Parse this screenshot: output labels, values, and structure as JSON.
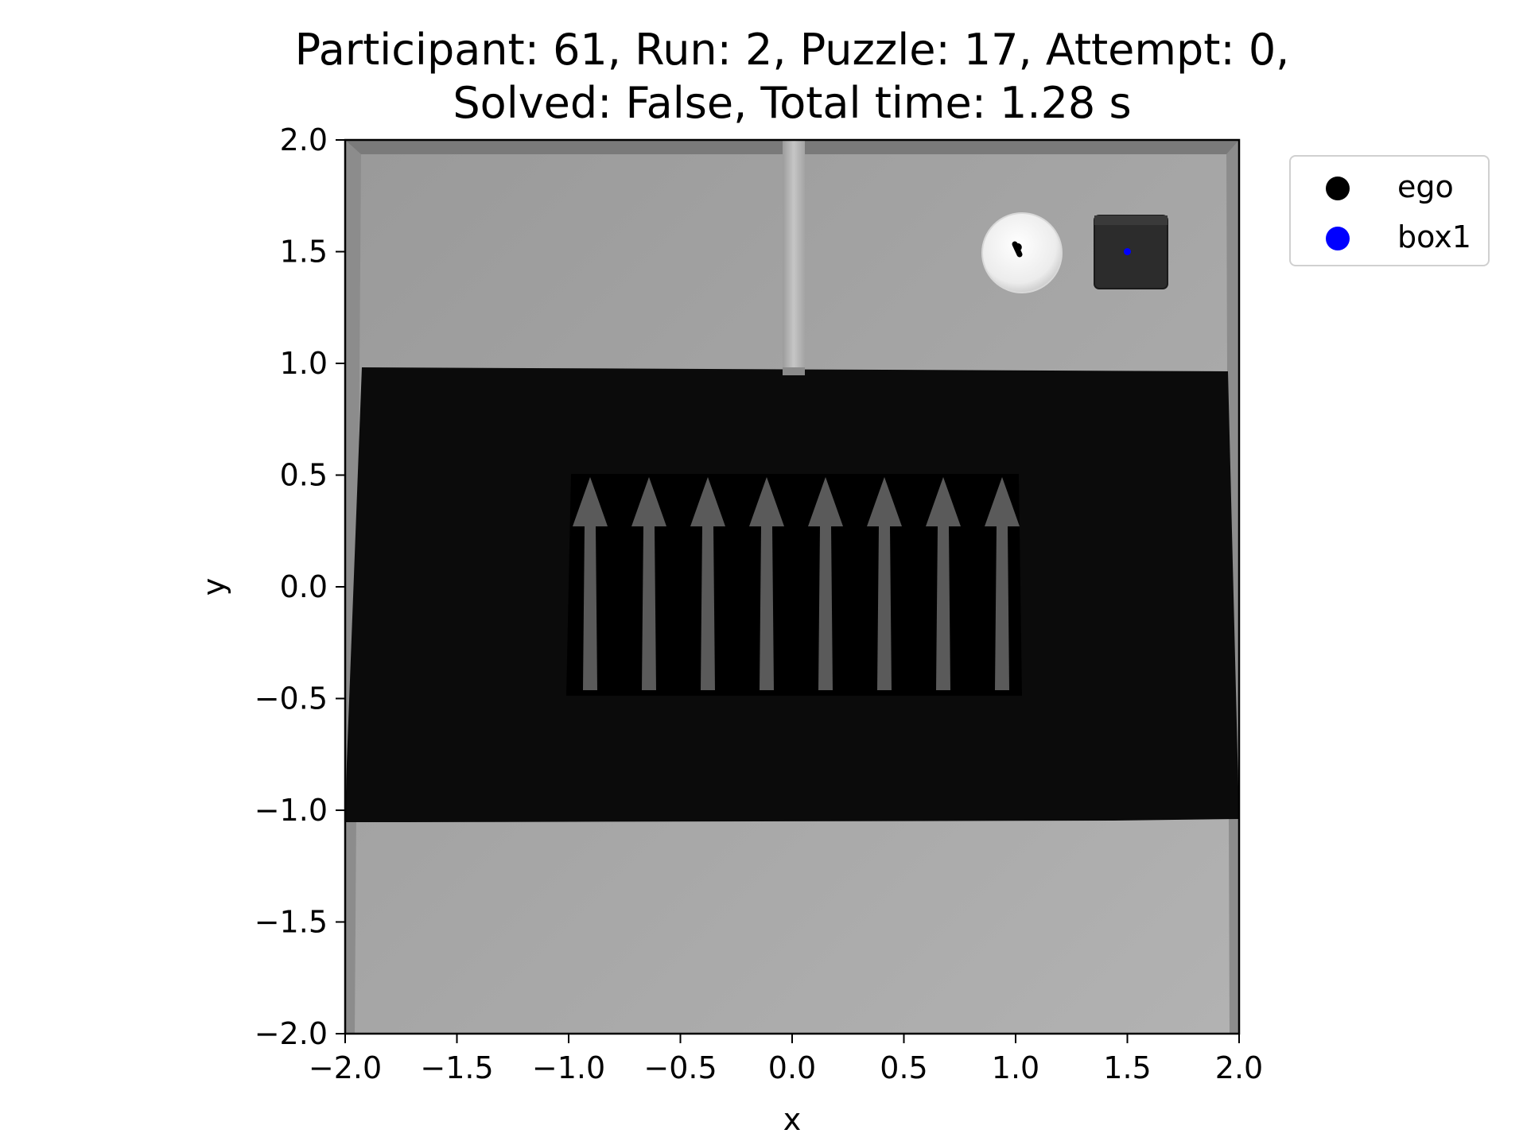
{
  "chart_data": {
    "type": "scatter",
    "title_lines": [
      "Participant: 61, Run: 2, Puzzle: 17, Attempt: 0,",
      "Solved: False, Total time: 1.28 s"
    ],
    "xlabel": "x",
    "ylabel": "y",
    "xlim": [
      -2.0,
      2.0
    ],
    "ylim": [
      -2.0,
      2.0
    ],
    "xticks": [
      "−2.0",
      "−1.5",
      "−1.0",
      "−0.5",
      "0.0",
      "0.5",
      "1.0",
      "1.5",
      "2.0"
    ],
    "yticks": [
      "2.0",
      "1.5",
      "1.0",
      "0.5",
      "0.0",
      "−0.5",
      "−1.0",
      "−1.5",
      "−2.0"
    ],
    "grid": false,
    "legend_position": "outside-top-right",
    "series": [
      {
        "name": "ego",
        "color": "#000000",
        "points": [
          {
            "x": 1.01,
            "y": 1.52
          }
        ]
      },
      {
        "name": "box1",
        "color": "#0000ff",
        "points": [
          {
            "x": 1.5,
            "y": 1.5
          }
        ]
      }
    ],
    "background_image": "top-down rendered scene: grey floor, dark pit band with upward arrows, pillar, white disc agent, dark box"
  }
}
